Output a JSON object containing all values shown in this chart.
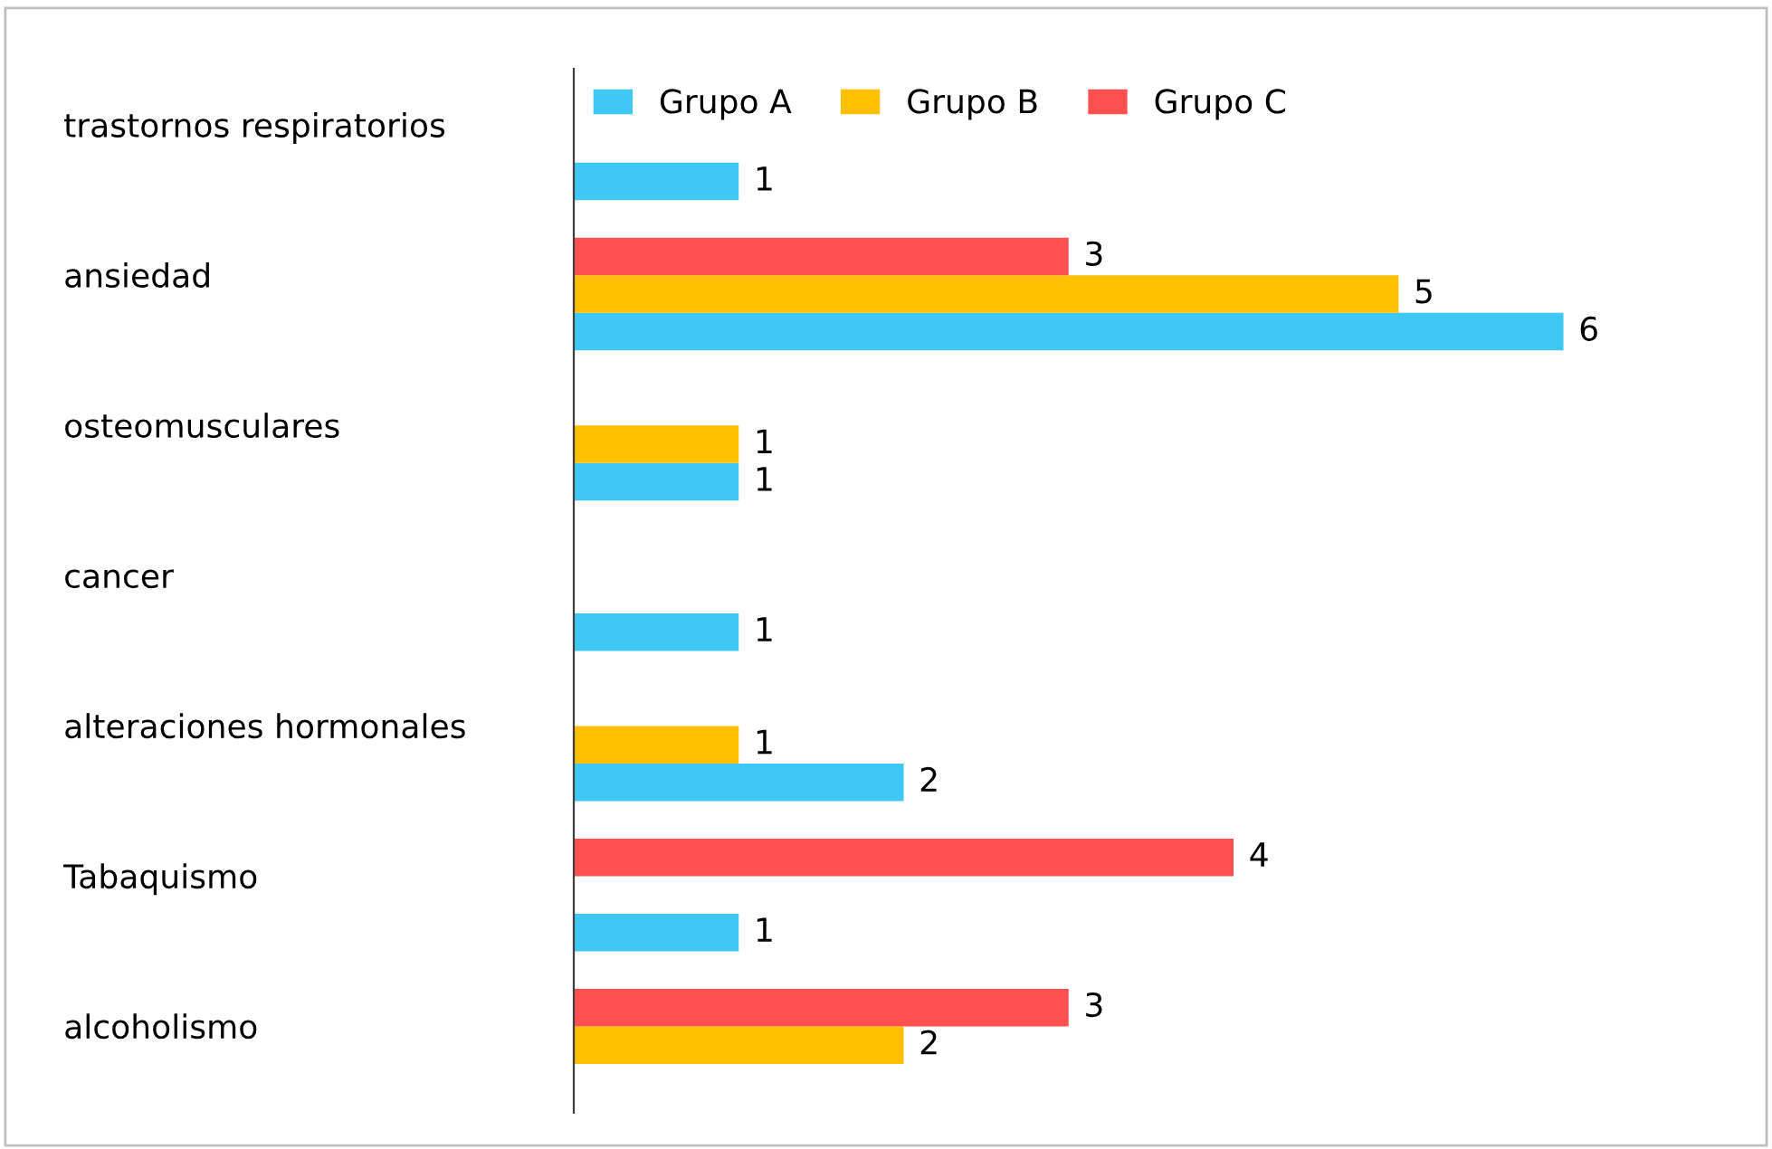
{
  "chart_data": {
    "type": "bar",
    "orientation": "horizontal",
    "categories": [
      "trastornos respiratorios",
      "ansiedad",
      "osteomusculares",
      "cancer",
      "alteraciones hormonales",
      "Tabaquismo",
      "alcoholismo"
    ],
    "series": [
      {
        "name": "Grupo A",
        "color": "#3fc8f4",
        "values": [
          1,
          6,
          1,
          1,
          2,
          1,
          null
        ]
      },
      {
        "name": "Grupo B",
        "color": "#ffc000",
        "values": [
          null,
          5,
          1,
          null,
          1,
          null,
          2
        ]
      },
      {
        "name": "Grupo C",
        "color": "#ff5050",
        "values": [
          null,
          3,
          null,
          null,
          null,
          4,
          3
        ]
      }
    ],
    "tick_labels": "y",
    "data_labels": true,
    "legend": "top left",
    "grid": false
  }
}
